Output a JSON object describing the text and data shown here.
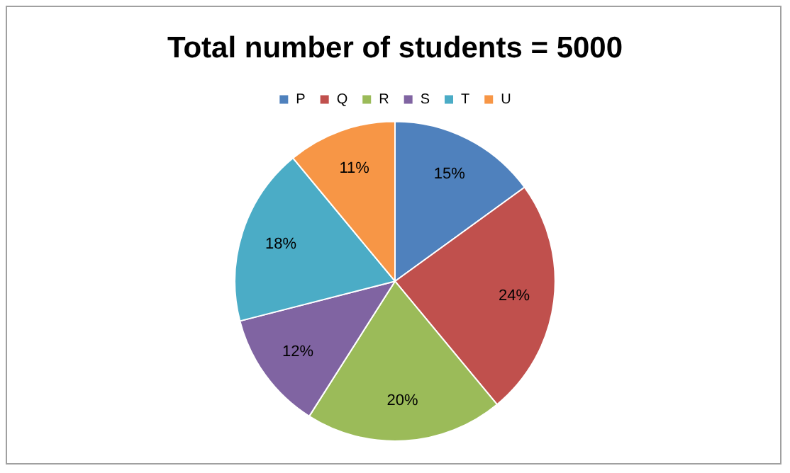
{
  "chart_data": {
    "type": "pie",
    "title": "Total number of students = 5000",
    "categories": [
      "P",
      "Q",
      "R",
      "S",
      "T",
      "U"
    ],
    "values": [
      15,
      24,
      20,
      12,
      18,
      11
    ],
    "colors": [
      "#4f81bd",
      "#c0504d",
      "#9bbb59",
      "#8064a2",
      "#4bacc6",
      "#f79646"
    ],
    "value_labels": [
      "15%",
      "24%",
      "20%",
      "12%",
      "18%",
      "11%"
    ],
    "legend": "top"
  }
}
